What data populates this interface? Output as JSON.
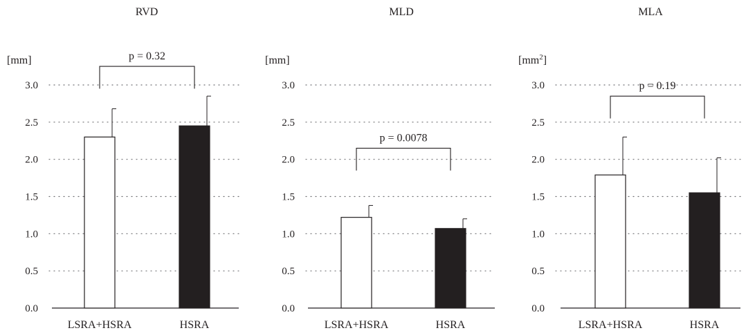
{
  "chart_data": [
    {
      "type": "bar",
      "title": "RVD",
      "ylabel": "[mm]",
      "ylabel_sup": "",
      "ylim": [
        0,
        3.0
      ],
      "yticks": [
        "0.0",
        "0.5",
        "1.0",
        "1.5",
        "2.0",
        "2.5",
        "3.0"
      ],
      "grid": "dotted horizontal",
      "categories": [
        "LSRA+HSRA",
        "HSRA"
      ],
      "values": [
        2.3,
        2.45
      ],
      "errors": [
        0.38,
        0.4
      ],
      "bar_colors": [
        "#ffffff",
        "#231f20"
      ],
      "annotation": {
        "text": "p = 0.32",
        "y": 3.25,
        "drop_to": 2.95
      }
    },
    {
      "type": "bar",
      "title": "MLD",
      "ylabel": "[mm]",
      "ylabel_sup": "",
      "ylim": [
        0,
        3.0
      ],
      "yticks": [
        "0.0",
        "0.5",
        "1.0",
        "1.5",
        "2.0",
        "2.5",
        "3.0"
      ],
      "grid": "dotted horizontal",
      "categories": [
        "LSRA+HSRA",
        "HSRA"
      ],
      "values": [
        1.22,
        1.07
      ],
      "errors": [
        0.16,
        0.13
      ],
      "bar_colors": [
        "#ffffff",
        "#231f20"
      ],
      "annotation": {
        "text": "p = 0.0078",
        "y": 2.15,
        "drop_to": 1.85
      }
    },
    {
      "type": "bar",
      "title": "MLA",
      "ylabel": "[mm",
      "ylabel_sup": "2",
      "ylabel_end": "]",
      "ylim": [
        0,
        3.0
      ],
      "yticks": [
        "0.0",
        "0.5",
        "1.0",
        "1.5",
        "2.0",
        "2.5",
        "3.0"
      ],
      "grid": "dotted horizontal",
      "categories": [
        "LSRA+HSRA",
        "HSRA"
      ],
      "values": [
        1.79,
        1.55
      ],
      "errors": [
        0.51,
        0.47
      ],
      "bar_colors": [
        "#ffffff",
        "#231f20"
      ],
      "annotation": {
        "text": "p = 0.19",
        "y": 2.85,
        "drop_to": 2.55
      }
    }
  ]
}
